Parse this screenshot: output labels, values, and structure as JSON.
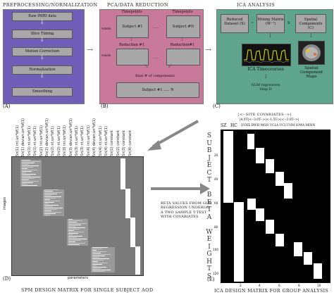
{
  "panels": {
    "a": {
      "title": "Preprocessing/Normalization",
      "letter": "(A)",
      "steps": [
        "Raw fMRI data",
        "Slice Timing",
        "Motion Correction",
        "Normalization",
        "Smoothing"
      ]
    },
    "b": {
      "title": "PCA/Data Reduction",
      "letter": "(B)",
      "voxels1": "voxels",
      "voxels2": "voxels",
      "tp1": "Timepoints",
      "tp2": "Timepoints",
      "subj1": "Subject #1",
      "subjN": "Subject #N",
      "dots1": "......",
      "red1": "Reduction #1",
      "red2": "Reduction#1",
      "dots2": "......",
      "final": "final # of components",
      "group": "Subject #1 ..... N"
    },
    "c": {
      "title": "ICA Analysis",
      "letter": "(C)",
      "reduced": "Reduced Dataset (X)",
      "eq": "=",
      "mixing": "Mixing Matrix (W⁻¹)",
      "x": "X",
      "spatial": "Spatial Components (C)",
      "timecourses": "ICA Timecourses",
      "maps": "Spatial Component Maps",
      "glm": "GLM regression Step D"
    },
    "d": {
      "letter": "(D)",
      "ylabel": "images",
      "xlabel": "parameters",
      "caption": "SPM Design Matrix for Single Subject AOD",
      "col_labels": [
        "Sn(1) int.un*bf(1)",
        "Sn(1) devian.un*bf(1)",
        "Sn(1) nt.un*bf(1)",
        "Sn(1) nt.un*bf(1)",
        "Sn(2) int.un*bf(1)",
        "Sn(2) devian.un*bf(1)",
        "Sn(2) nt.un*bf(1)",
        "Sn(2) nt.un*bf(1)",
        "Sn(3) int.un*bf(1)",
        "Sn(3) devian.un*bf(1)",
        "Sn(3) nt.un*bf(1)",
        "Sn(3) nt.un*bf(1)",
        "Sn(4) int.un*bf(1)",
        "Sn(4) devian.un*bf(1)",
        "Sn(4) nt.un*bf(1)",
        "Sn(4) nt.un*bf(1)",
        "Sn(1) constant",
        "Sn(2) constant",
        "Sn(3) constant",
        "Sn(4) constant"
      ]
    },
    "beta_text": "Beta values from GLM regression undergo a two sample t-test with covariates",
    "e": {
      "letter": "(E)",
      "site_cov": "Site Covariates",
      "bracket_left": "|<-",
      "bracket_right": "->|",
      "ranges": "|4.0T|<--3.0T-->|<-1.5T->|<--3.0T-->|",
      "sz": "SZ",
      "hc": "HC",
      "sites": "Duke BWH MGH UCLA UCI UNM Iowa MINN",
      "ylabel_chars": [
        "S",
        "u",
        "b",
        "j",
        "e",
        "c",
        "t",
        "",
        "B",
        "e",
        "t",
        "a",
        "",
        "W",
        "e",
        "i",
        "g",
        "h",
        "t",
        "s"
      ],
      "yticks": [
        "20",
        "40",
        "60",
        "80",
        "100",
        "120"
      ],
      "xticks": [
        "2",
        "4",
        "6",
        "8",
        "10"
      ],
      "caption": "ICA Design Matrix for Group Analysis"
    }
  },
  "colors": {
    "panel_a": "#6f5fb8",
    "panel_b": "#c9799a",
    "panel_c": "#5fa48c",
    "gray_box": "#a8a8a8",
    "matrix_bg": "#7a7a7a"
  }
}
